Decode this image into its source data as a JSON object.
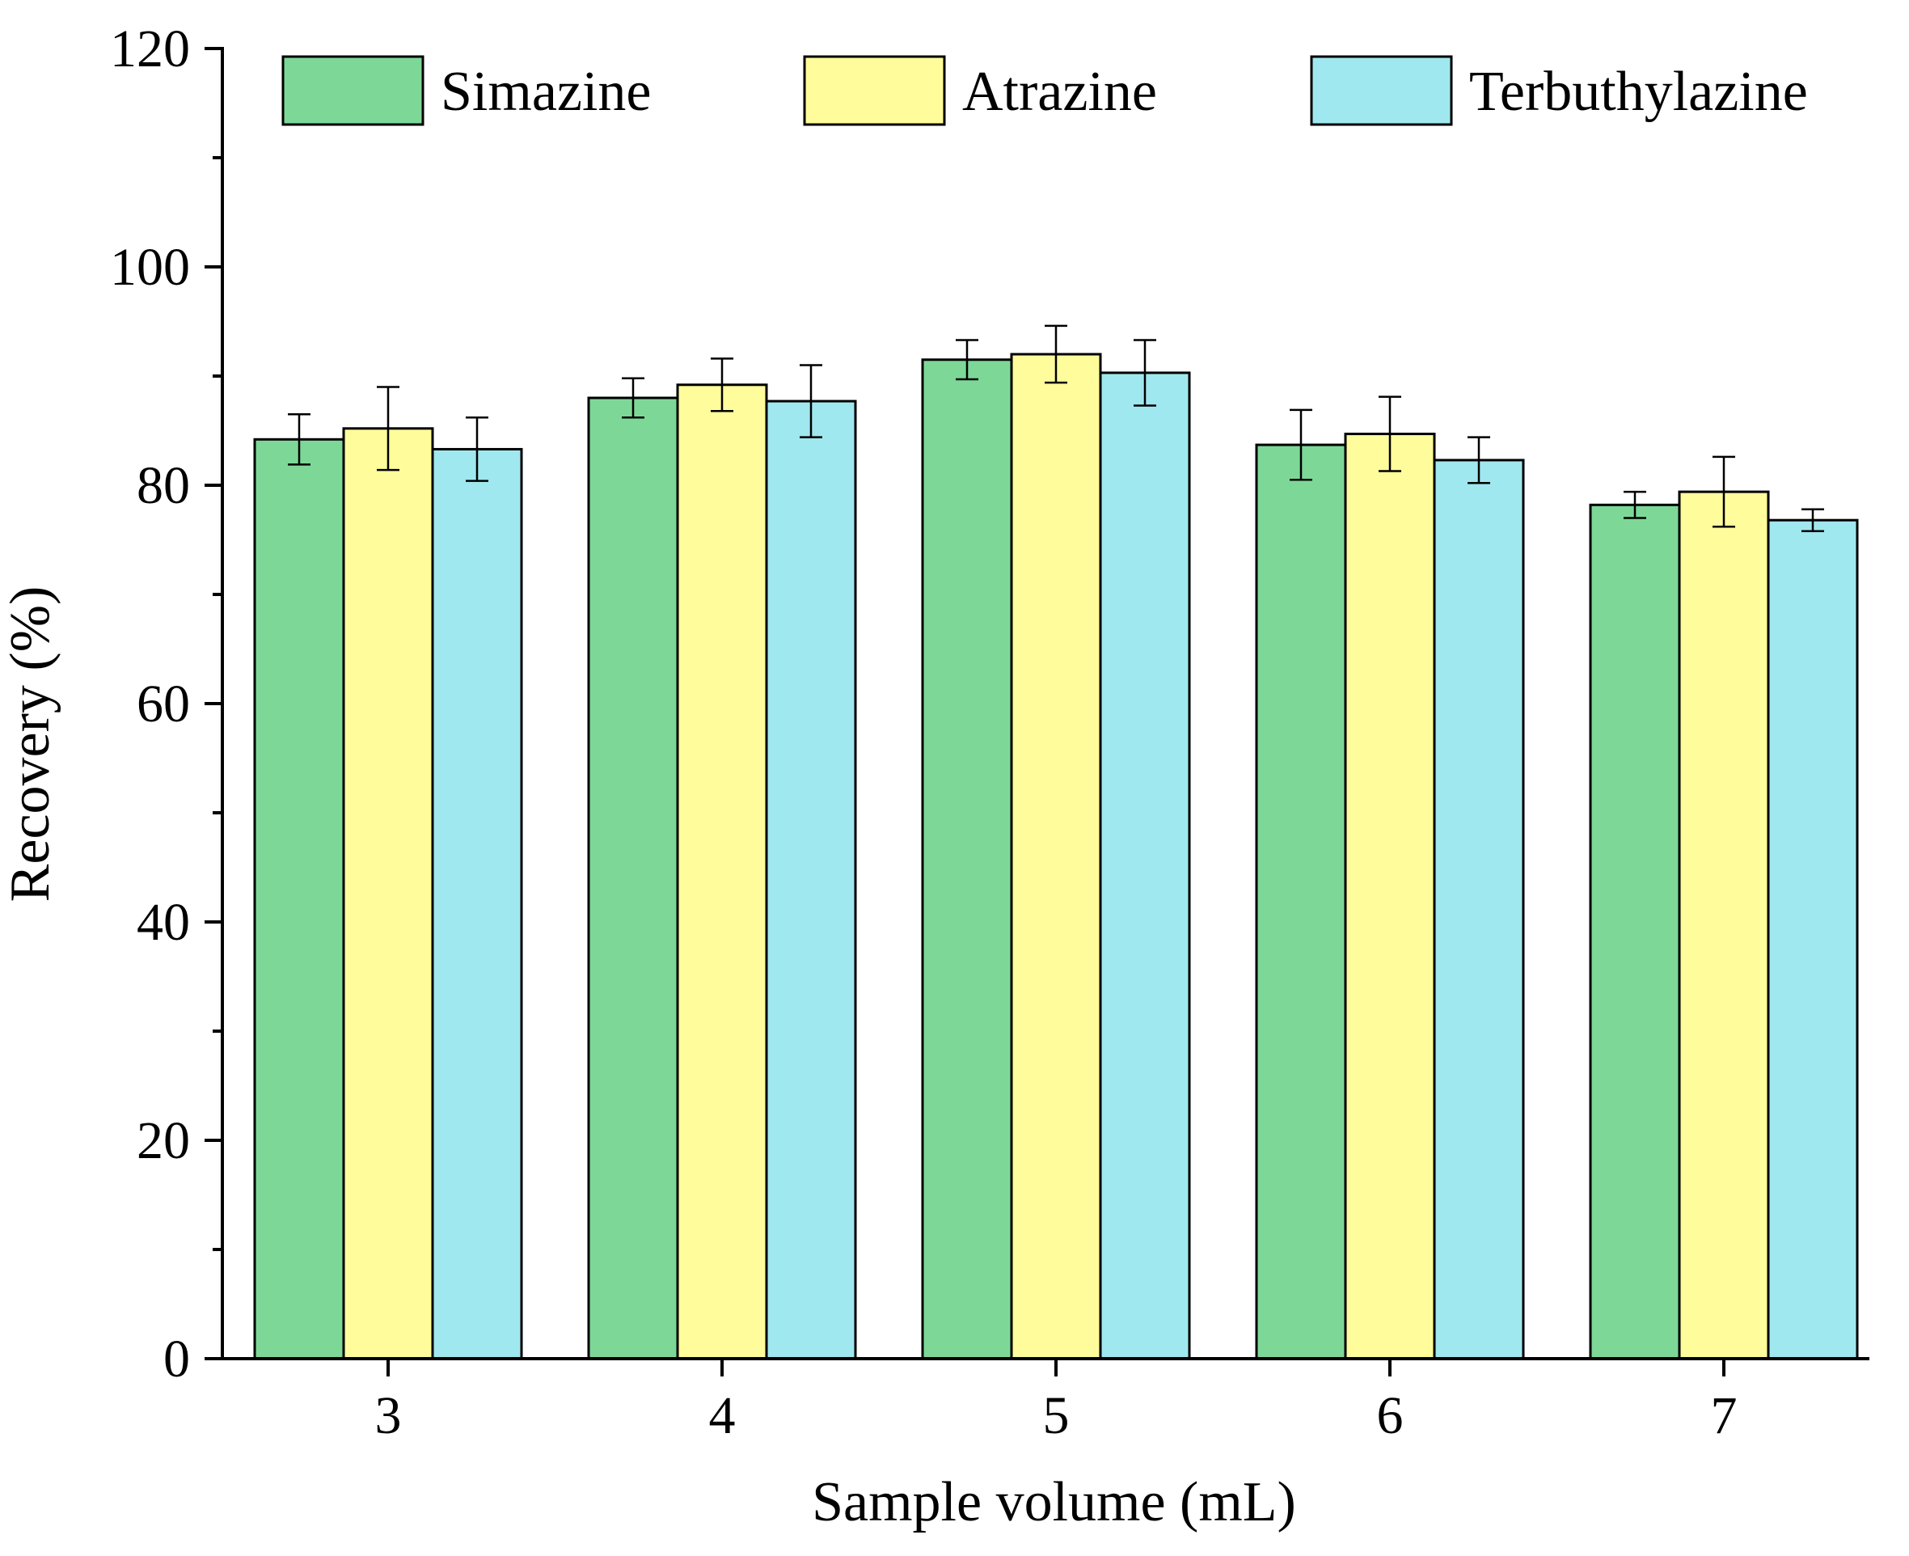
{
  "chart_data": {
    "type": "bar",
    "title": "",
    "xlabel": "Sample volume (mL)",
    "ylabel": "Recovery (%)",
    "categories": [
      "3",
      "4",
      "5",
      "6",
      "7"
    ],
    "ylim": [
      0,
      120
    ],
    "yticks": [
      "0",
      "20",
      "40",
      "60",
      "80",
      "100",
      "120"
    ],
    "grid": false,
    "legend_position": "top",
    "series": [
      {
        "name": "Simazine",
        "color": "#7dd897",
        "values": [
          84.2,
          88.0,
          91.5,
          83.7,
          78.2
        ],
        "errors": [
          2.3,
          1.8,
          1.8,
          3.2,
          1.2
        ]
      },
      {
        "name": "Atrazine",
        "color": "#fffc9c",
        "values": [
          85.2,
          89.2,
          92.0,
          84.7,
          79.4
        ],
        "errors": [
          3.8,
          2.4,
          2.6,
          3.4,
          3.2
        ]
      },
      {
        "name": "Terbuthylazine",
        "color": "#a0e8ef",
        "values": [
          83.3,
          87.7,
          90.3,
          82.3,
          76.8
        ],
        "errors": [
          2.9,
          3.3,
          3.0,
          2.1,
          1.0
        ]
      }
    ]
  }
}
